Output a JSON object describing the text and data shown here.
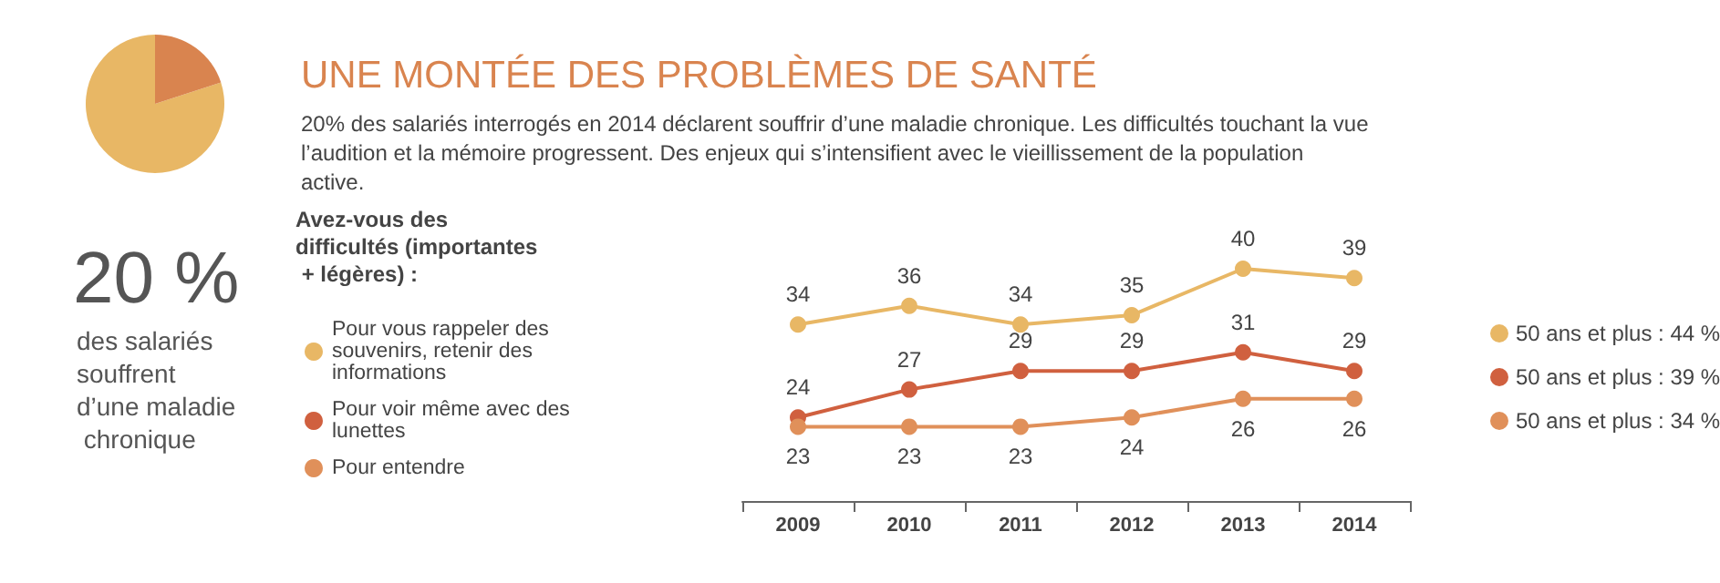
{
  "chart_data": [
    {
      "type": "pie",
      "categories": [
        null,
        null
      ],
      "values": [
        80,
        20
      ],
      "colors": [
        "#e8b765",
        "#d9844f"
      ],
      "annotations": [
        "20 %",
        "des salariés souffrent d’une maladie chronique"
      ]
    },
    {
      "type": "line",
      "title": "UNE MONTÉE DES PROBLÈMES DE SANTÉ",
      "subtitle": "20% des salariés interrogés en 2014 déclarent souffrir d’une maladie chronique. Les difficultés touchant la vue l’audition et la mémoire progressent. Des enjeux qui s’intensifient avec le vieillissement de la population active.",
      "annotations": [
        "Avez-vous des difficultés (importantes + légères) :",
        "50 ans et plus : 44 %",
        "50 ans et plus : 39 %",
        "50 ans et plus : 34 %"
      ],
      "categories": [
        "2009",
        "2010",
        "2011",
        "2012",
        "2013",
        "2014"
      ],
      "series": [
        {
          "name": "Pour vous rappeler des souvenirs, retenir des informations",
          "color": "#e8b765",
          "values": [
            34,
            36,
            34,
            35,
            40,
            39
          ]
        },
        {
          "name": "Pour voir même avec des lunettes",
          "color": "#d0603f",
          "values": [
            24,
            27,
            29,
            29,
            31,
            29
          ]
        },
        {
          "name": "Pour entendre",
          "color": "#e0905a",
          "values": [
            23,
            23,
            23,
            24,
            26,
            26
          ]
        }
      ],
      "data_labels": true,
      "marker": "circle",
      "legend": "left",
      "tick_labels": "x",
      "grid": false
    }
  ]
}
